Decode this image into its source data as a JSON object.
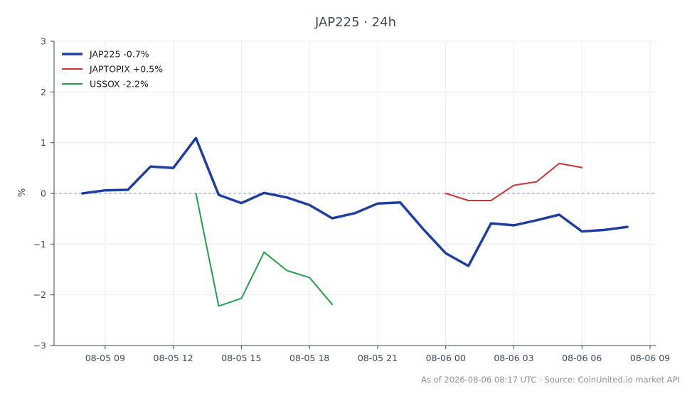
{
  "chart_data": {
    "type": "line",
    "title": "JAP225 · 24h",
    "ylabel": "%",
    "xlabel": "",
    "ylim": [
      -3,
      3
    ],
    "yticks": [
      -3,
      -2,
      -1,
      0,
      1,
      2,
      3
    ],
    "ytick_labels": [
      "−3",
      "−2",
      "−1",
      "0",
      "1",
      "2",
      "3"
    ],
    "xlim": [
      "08-05 06:45",
      "08-06 09:15"
    ],
    "xticks": [
      "08-05 09:00",
      "08-05 12:00",
      "08-05 15:00",
      "08-05 18:00",
      "08-05 21:00",
      "08-06 00:00",
      "08-06 03:00",
      "08-06 06:00",
      "08-06 09:00"
    ],
    "xtick_labels": [
      "08-05 09",
      "08-05 12",
      "08-05 15",
      "08-05 18",
      "08-05 21",
      "08-06 00",
      "08-06 03",
      "08-06 06",
      "08-06 09"
    ],
    "grid": true,
    "reference_line": {
      "y": 0,
      "style": "dashed",
      "color": "#8a96ad"
    },
    "legend_position": "top-left",
    "series": [
      {
        "name": "JAP225 -0.7%",
        "color": "#1f3fa0",
        "width": 3.5,
        "x": [
          "08-05 08:00",
          "08-05 09:00",
          "08-05 10:00",
          "08-05 11:00",
          "08-05 12:00",
          "08-05 13:00",
          "08-05 14:00",
          "08-05 15:00",
          "08-05 16:00",
          "08-05 17:00",
          "08-05 18:00",
          "08-05 19:00",
          "08-05 20:00",
          "08-05 21:00",
          "08-05 22:00",
          "08-05 23:00",
          "08-06 00:00",
          "08-06 01:00",
          "08-06 02:00",
          "08-06 03:00",
          "08-06 04:00",
          "08-06 05:00",
          "08-06 06:00",
          "08-06 07:00",
          "08-06 08:00"
        ],
        "y": [
          0.0,
          0.06,
          0.07,
          0.53,
          0.5,
          1.09,
          -0.03,
          -0.19,
          0.01,
          -0.08,
          -0.23,
          -0.49,
          -0.39,
          -0.2,
          -0.18,
          -0.7,
          -1.18,
          -1.43,
          -0.59,
          -0.63,
          -0.53,
          -0.42,
          -0.75,
          -0.72,
          -0.66
        ]
      },
      {
        "name": "JAPTOPIX +0.5%",
        "color": "#d03232",
        "width": 2,
        "x": [
          "08-06 00:00",
          "08-06 01:00",
          "08-06 02:00",
          "08-06 03:00",
          "08-06 04:00",
          "08-06 05:00",
          "08-06 06:00"
        ],
        "y": [
          0.0,
          -0.14,
          -0.14,
          0.16,
          0.23,
          0.59,
          0.51
        ]
      },
      {
        "name": "USSOX -2.2%",
        "color": "#22a04a",
        "width": 2,
        "x": [
          "08-05 13:00",
          "08-05 14:00",
          "08-05 15:00",
          "08-05 16:00",
          "08-05 17:00",
          "08-05 18:00",
          "08-05 19:00"
        ],
        "y": [
          0.0,
          -2.22,
          -2.07,
          -1.16,
          -1.52,
          -1.66,
          -2.19
        ]
      }
    ],
    "footer": "As of 2026-08-06 08:17 UTC · Source: CoinUnited.io market API"
  }
}
